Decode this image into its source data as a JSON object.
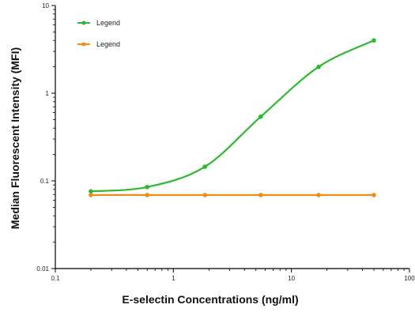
{
  "chart_data": {
    "type": "line",
    "title": "",
    "xlabel": "E-selectin Concentrations (ng/ml)",
    "ylabel": "Median Fluorescent Intensity (MFI)",
    "x_scale": "log",
    "y_scale": "log",
    "xlim": [
      0.1,
      100
    ],
    "ylim": [
      0.01,
      10
    ],
    "x_ticks": [
      0.1,
      1,
      10,
      100
    ],
    "x_tick_labels": [
      "0.1",
      "1",
      "10",
      "100"
    ],
    "y_ticks": [
      0.01,
      0.1,
      1,
      10
    ],
    "y_tick_labels": [
      "0.01",
      "0.1",
      "1",
      "10"
    ],
    "grid": false,
    "legend_position": "top-left",
    "series": [
      {
        "name": "Legend",
        "color": "#2db82d",
        "x": [
          0.2,
          0.6,
          1.85,
          5.5,
          17,
          50
        ],
        "y": [
          0.076,
          0.085,
          0.145,
          0.54,
          2.0,
          4.0
        ]
      },
      {
        "name": "Legend",
        "color": "#f08a18",
        "x": [
          0.2,
          0.6,
          1.85,
          5.5,
          17,
          50
        ],
        "y": [
          0.069,
          0.069,
          0.069,
          0.069,
          0.069,
          0.069
        ]
      }
    ]
  }
}
